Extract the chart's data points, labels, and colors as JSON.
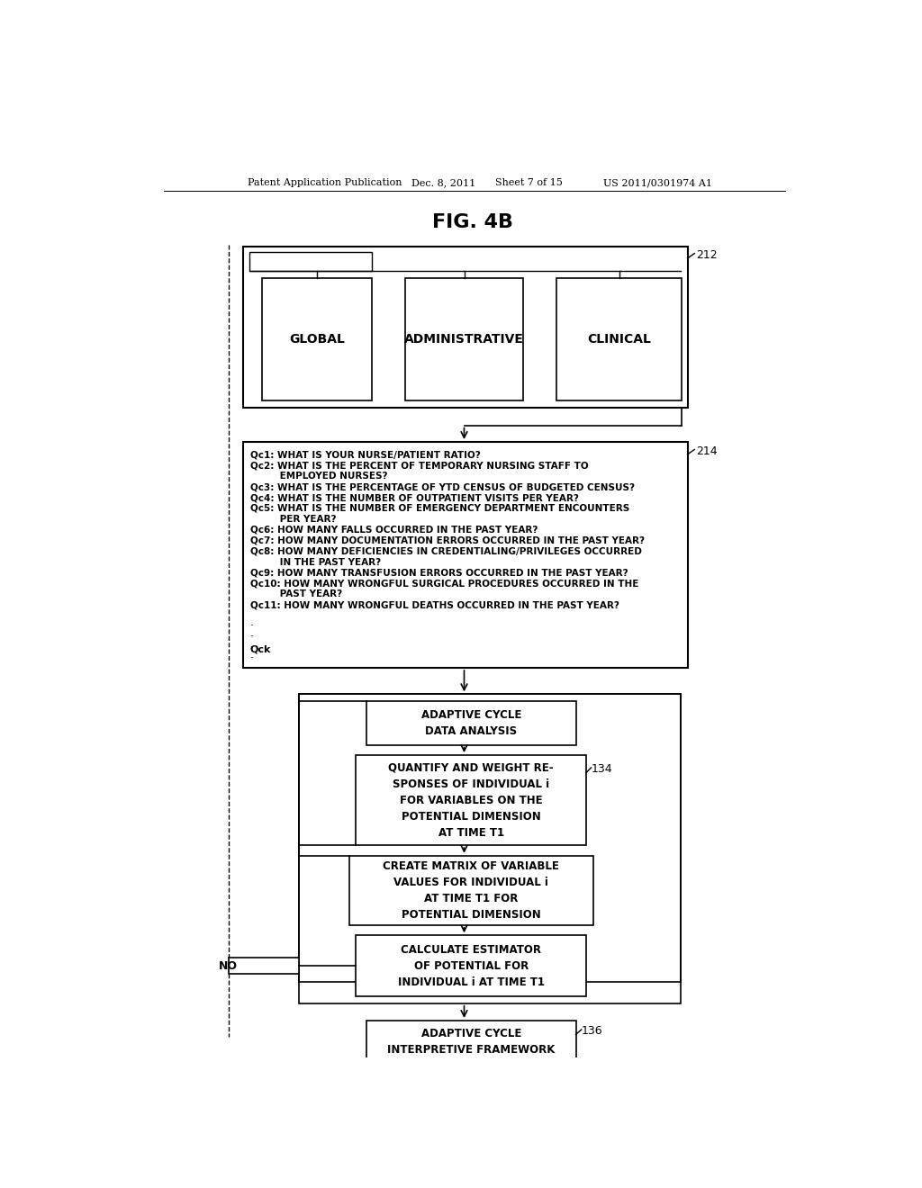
{
  "bg_color": "#ffffff",
  "header_line1": "Patent Application Publication",
  "header_line2": "Dec. 8, 2011",
  "header_line3": "Sheet 7 of 15",
  "header_line4": "US 2011/0301974 A1",
  "fig_title": "FIG. 4B",
  "label_212": "212",
  "label_214": "214",
  "label_134": "134",
  "label_136": "136",
  "box_global": "GLOBAL",
  "box_admin": "ADMINISTRATIVE",
  "box_clinical": "CLINICAL",
  "q_lines": [
    "Qc1: WHAT IS YOUR NURSE/PATIENT RATIO?",
    "Qc2: WHAT IS THE PERCENT OF TEMPORARY NURSING STAFF TO",
    "         EMPLOYED NURSES?",
    "Qc3: WHAT IS THE PERCENTAGE OF YTD CENSUS OF BUDGETED CENSUS?",
    "Qc4: WHAT IS THE NUMBER OF OUTPATIENT VISITS PER YEAR?",
    "Qc5: WHAT IS THE NUMBER OF EMERGENCY DEPARTMENT ENCOUNTERS",
    "         PER YEAR?",
    "Qc6: HOW MANY FALLS OCCURRED IN THE PAST YEAR?",
    "Qc7: HOW MANY DOCUMENTATION ERRORS OCCURRED IN THE PAST YEAR?",
    "Qc8: HOW MANY DEFICIENCIES IN CREDENTIALING/PRIVILEGES OCCURRED",
    "         IN THE PAST YEAR?",
    "Qc9: HOW MANY TRANSFUSION ERRORS OCCURRED IN THE PAST YEAR?",
    "Qc10: HOW MANY WRONGFUL SURGICAL PROCEDURES OCCURRED IN THE",
    "         PAST YEAR?",
    "Qc11: HOW MANY WRONGFUL DEATHS OCCURRED IN THE PAST YEAR?"
  ],
  "dots_text": ".\n.\n.\n.\n.",
  "qck_text": "Qck",
  "box1_text": "ADAPTIVE CYCLE\nDATA ANALYSIS",
  "box2_text": "QUANTIFY AND WEIGHT RE-\nSPONSES OF INDIVIDUAL i\nFOR VARIABLES ON THE\nPOTENTIAL DIMENSION\nAT TIME T1",
  "box3_text": "CREATE MATRIX OF VARIABLE\nVALUES FOR INDIVIDUAL i\nAT TIME T1 FOR\nPOTENTIAL DIMENSION",
  "box4_text": "CALCULATE ESTIMATOR\nOF POTENTIAL FOR\nINDIVIDUAL i AT TIME T1",
  "box5_text": "ADAPTIVE CYCLE\nINTERPRETIVE FRAMEWORK",
  "no_label": "NO"
}
